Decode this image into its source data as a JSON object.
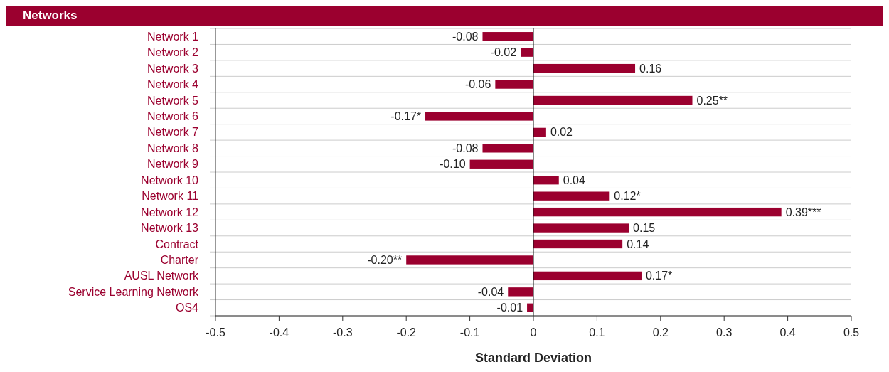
{
  "chart_data": {
    "type": "bar",
    "orientation": "horizontal",
    "title": "Networks",
    "xlabel": "Standard Deviation",
    "categories": [
      "Network 1",
      "Network 2",
      "Network 3",
      "Network 4",
      "Network 5",
      "Network 6",
      "Network 7",
      "Network 8",
      "Network 9",
      "Network 10",
      "Network 11",
      "Network 12",
      "Network 13",
      "Contract",
      "Charter",
      "AUSL Network",
      "Service Learning Network",
      "OS4"
    ],
    "values": [
      -0.08,
      -0.02,
      0.16,
      -0.06,
      0.25,
      -0.17,
      0.02,
      -0.08,
      -0.1,
      0.04,
      0.12,
      0.39,
      0.15,
      0.14,
      -0.2,
      0.17,
      -0.04,
      -0.01
    ],
    "value_labels": [
      "-0.08",
      "-0.02",
      "0.16",
      "-0.06",
      "0.25**",
      "-0.17*",
      "0.02",
      "-0.08",
      "-0.10",
      "0.04",
      "0.12*",
      "0.39***",
      "0.15",
      "0.14",
      "-0.20**",
      "0.17*",
      "-0.04",
      "-0.01"
    ],
    "color": "#9b002f",
    "xlim": [
      -0.5,
      0.5
    ],
    "xticks": [
      -0.5,
      -0.4,
      -0.3,
      -0.2,
      -0.1,
      0,
      0.1,
      0.2,
      0.3,
      0.4,
      0.5
    ],
    "grid": "y"
  }
}
